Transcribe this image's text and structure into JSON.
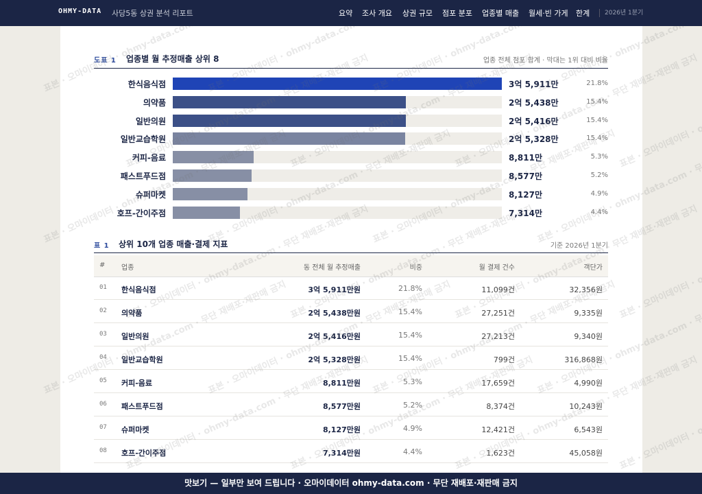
{
  "nav": {
    "brand": "OHMY-DATA",
    "title": "사당5동 상권 분석 리포트",
    "items": [
      "요약",
      "조사 개요",
      "상권 규모",
      "점포 분포",
      "업종별 매출",
      "월세·빈 가게",
      "한계"
    ],
    "period": "2026년 1분기"
  },
  "figure": {
    "tag": "도표 1",
    "title": "업종별 월 추정매출 상위 8",
    "note": "업종 전체 점포 합계 · 막대는 1위 대비 비율",
    "rows": [
      {
        "name": "한식음식점",
        "value": 35911,
        "value_label": "3억 5,911만",
        "share": "21.8%",
        "color": "#1f44b6"
      },
      {
        "name": "의약품",
        "value": 25438,
        "value_label": "2억 5,438만",
        "share": "15.4%",
        "color": "#3c5087"
      },
      {
        "name": "일반의원",
        "value": 25416,
        "value_label": "2억 5,416만",
        "share": "15.4%",
        "color": "#3c5087"
      },
      {
        "name": "일반교습학원",
        "value": 25328,
        "value_label": "2억 5,328만",
        "share": "15.4%",
        "color": "#7a84a0"
      },
      {
        "name": "커피-음료",
        "value": 8811,
        "value_label": "8,811만",
        "share": "5.3%",
        "color": "#878fa5"
      },
      {
        "name": "패스트푸드점",
        "value": 8577,
        "value_label": "8,577만",
        "share": "5.2%",
        "color": "#878fa5"
      },
      {
        "name": "슈퍼마켓",
        "value": 8127,
        "value_label": "8,127만",
        "share": "4.9%",
        "color": "#878fa5"
      },
      {
        "name": "호프-간이주점",
        "value": 7314,
        "value_label": "7,314만",
        "share": "4.4%",
        "color": "#878fa5"
      }
    ]
  },
  "table": {
    "tag": "표 1",
    "title": "상위 10개 업종 매출·결제 지표",
    "note": "기준 2026년 1분기",
    "headers": [
      "#",
      "업종",
      "동 전체 월 추정매출",
      "비중",
      "월 결제 건수",
      "객단가"
    ],
    "rows": [
      [
        "01",
        "한식음식점",
        "3억 5,911만원",
        "21.8%",
        "11,099건",
        "32,356원"
      ],
      [
        "02",
        "의약품",
        "2억 5,438만원",
        "15.4%",
        "27,251건",
        "9,335원"
      ],
      [
        "03",
        "일반의원",
        "2억 5,416만원",
        "15.4%",
        "27,213건",
        "9,340원"
      ],
      [
        "04",
        "일반교습학원",
        "2억 5,328만원",
        "15.4%",
        "799건",
        "316,868원"
      ],
      [
        "05",
        "커피-음료",
        "8,811만원",
        "5.3%",
        "17,659건",
        "4,990원"
      ],
      [
        "06",
        "패스트푸드점",
        "8,577만원",
        "5.2%",
        "8,374건",
        "10,243원"
      ],
      [
        "07",
        "슈퍼마켓",
        "8,127만원",
        "4.9%",
        "12,421건",
        "6,543원"
      ],
      [
        "08",
        "호프-간이주점",
        "7,314만원",
        "4.4%",
        "1,623건",
        "45,058원"
      ]
    ]
  },
  "watermark": "표본 · 오마이데이터 · ohmy-data.com · 무단 재배포·재판매 금지",
  "footer": "맛보기 — 일부만 보여 드립니다 · 오마이데이터 ohmy-data.com · 무단 재배포·재판매 금지"
}
